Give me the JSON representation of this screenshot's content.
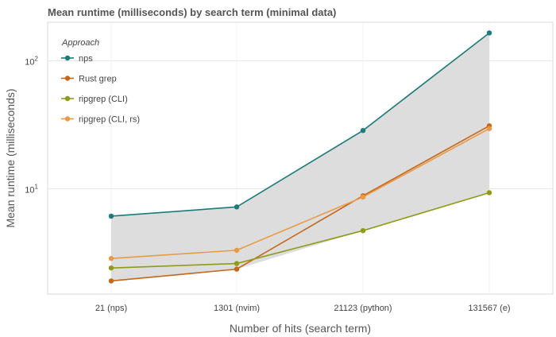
{
  "chart_data": {
    "type": "line",
    "title": "Mean runtime (milliseconds) by search term (minimal data)",
    "xlabel": "Number of hits (search term)",
    "ylabel": "Mean runtime (milliseconds)",
    "categories": [
      "21 (nps)",
      "1301 (nvim)",
      "21123 (python)",
      "131567 (e)"
    ],
    "y_scale": "log10",
    "ylim": [
      1.5,
      200
    ],
    "y_ticks": [
      {
        "value": 10,
        "base": "10",
        "exp": "1"
      },
      {
        "value": 100,
        "base": "10",
        "exp": "2"
      }
    ],
    "grid": true,
    "band_between_min_max": true,
    "legend": {
      "title": "Approach",
      "position": "top-left"
    },
    "series": [
      {
        "name": "nps",
        "color": "#1b7b7b",
        "values": [
          6.1,
          7.2,
          28.5,
          165
        ]
      },
      {
        "name": "Rust grep",
        "color": "#c4671a",
        "values": [
          1.9,
          2.35,
          8.8,
          31
        ]
      },
      {
        "name": "ripgrep (CLI)",
        "color": "#8f9a16",
        "values": [
          2.4,
          2.6,
          4.7,
          9.3
        ]
      },
      {
        "name": "ripgrep (CLI, rs)",
        "color": "#e89a45",
        "values": [
          2.85,
          3.3,
          8.6,
          29.5
        ]
      }
    ],
    "band_color": "#dddddd"
  }
}
